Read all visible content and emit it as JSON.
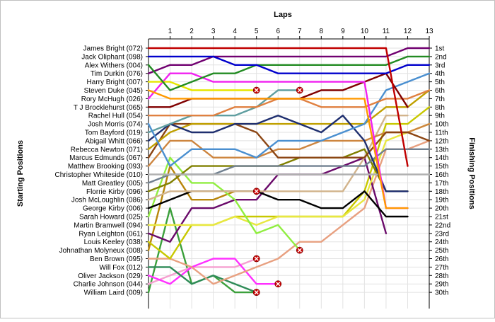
{
  "chart_data": {
    "type": "line",
    "title": "",
    "xlabel": "Laps",
    "ylabel_left": "Starting Positions",
    "ylabel_right": "Finishing Positions",
    "x": [
      0,
      1,
      2,
      3,
      4,
      5,
      6,
      7,
      8,
      9,
      10,
      11,
      12,
      13
    ],
    "lap_labels": [
      "1",
      "2",
      "3",
      "4",
      "5",
      "6",
      "7",
      "8",
      "9",
      "10",
      "11",
      "12",
      "13"
    ],
    "finishing_labels": [
      "1st",
      "2nd",
      "3rd",
      "4th",
      "5th",
      "6th",
      "7th",
      "8th",
      "9th",
      "10th",
      "11th",
      "12th",
      "13th",
      "14th",
      "15th",
      "16th",
      "17th",
      "18th",
      "19th",
      "20th",
      "21st",
      "22nd",
      "23rd",
      "24th",
      "25th",
      "26th",
      "27th",
      "28th",
      "29th",
      "30th"
    ],
    "ylim": [
      1,
      30
    ],
    "y_inverted": true,
    "grid": true,
    "retirement_marker": "red-x",
    "series": [
      {
        "name": "James Bright (072)",
        "color": "#c00000",
        "positions": [
          1,
          1,
          1,
          1,
          1,
          1,
          1,
          1,
          1,
          1,
          1,
          1,
          15
        ]
      },
      {
        "name": "Jack Oliphant (098)",
        "color": "#0000cc",
        "positions": [
          2,
          2,
          2,
          2,
          3,
          3,
          4,
          4,
          4,
          4,
          4,
          4,
          3,
          3
        ]
      },
      {
        "name": "Alex Withers (004)",
        "color": "#228b22",
        "positions": [
          3,
          6,
          5,
          4,
          4,
          3,
          3,
          3,
          3,
          3,
          3,
          3,
          2,
          2
        ]
      },
      {
        "name": "Tim Durkin (076)",
        "color": "#700070",
        "positions": [
          4,
          3,
          3,
          2,
          2,
          2,
          2,
          2,
          2,
          2,
          2,
          2,
          1,
          1
        ]
      },
      {
        "name": "Harry Bright (007)",
        "color": "#e6e600",
        "positions": [
          5,
          5,
          6,
          6,
          6,
          6
        ]
      },
      {
        "name": "Steven Duke (045)",
        "color": "#ff9900",
        "positions": [
          6,
          7,
          7,
          7,
          7,
          7,
          7,
          7,
          7,
          7,
          7,
          20,
          20
        ]
      },
      {
        "name": "Rory McHugh (026)",
        "color": "#f020f0",
        "positions": [
          7,
          4,
          4,
          5,
          5,
          5,
          5,
          5,
          5,
          5,
          5,
          20,
          20
        ]
      },
      {
        "name": "T J Brocklehurst (065)",
        "color": "#800000",
        "positions": [
          8,
          8,
          7,
          7,
          7,
          7,
          7,
          7,
          6,
          6,
          5,
          4,
          8
        ]
      },
      {
        "name": "Rachel Hull (054)",
        "color": "#e08040",
        "positions": [
          9,
          9,
          9,
          9,
          8,
          8,
          7,
          7,
          8,
          8,
          8,
          7,
          7,
          6
        ]
      },
      {
        "name": "Josh Morris (074)",
        "color": "#4a8fd0",
        "positions": [
          10,
          15,
          13,
          13,
          13,
          14,
          12,
          12,
          12,
          11,
          10,
          6,
          5,
          4
        ]
      },
      {
        "name": "Tom Bayford (019)",
        "color": "#5f9ea0",
        "positions": [
          11,
          10,
          9,
          9,
          9,
          8,
          6,
          6
        ]
      },
      {
        "name": "Abigail Whitt (066)",
        "color": "#1f2f6f",
        "positions": [
          12,
          10,
          11,
          11,
          10,
          10,
          9,
          10,
          11,
          9,
          12,
          18,
          18
        ]
      },
      {
        "name": "Rebecca Newton (071)",
        "color": "#c0a000",
        "positions": [
          13,
          11,
          10,
          10,
          10,
          10,
          10,
          10,
          10,
          10,
          10,
          8,
          8,
          6
        ]
      },
      {
        "name": "Marcus Edmunds (067)",
        "color": "#8b4513",
        "positions": [
          14,
          10,
          10,
          10,
          10,
          11,
          14,
          14,
          14,
          14,
          14,
          11,
          11,
          12
        ]
      },
      {
        "name": "Matthew Brooking (093)",
        "color": "#cd853f",
        "positions": [
          15,
          12,
          12,
          14,
          14,
          14,
          13,
          13,
          12,
          12,
          12,
          11,
          11,
          10
        ]
      },
      {
        "name": "Christopher Whiteside (010)",
        "color": "#b0b0b0",
        "positions": [
          16,
          16,
          16,
          16,
          16,
          16,
          16,
          16,
          16,
          16,
          16,
          16,
          16,
          16
        ]
      },
      {
        "name": "Matt Greatley (005)",
        "color": "#708090",
        "positions": [
          17,
          16,
          16,
          16,
          15,
          15,
          15,
          15,
          15,
          15,
          15,
          13,
          13,
          13
        ]
      },
      {
        "name": "Florrie Kirby (096)",
        "color": "#808000",
        "positions": [
          18,
          17,
          15,
          15,
          15,
          15,
          15,
          14,
          14,
          14,
          13,
          18,
          18
        ]
      },
      {
        "name": "Josh McLoughlin (086)",
        "color": "#d2b48c",
        "positions": [
          19,
          18,
          18,
          18,
          18,
          18,
          18,
          18,
          18,
          18,
          14,
          9,
          9
        ]
      },
      {
        "name": "George Kirby (006)",
        "color": "#000000",
        "positions": [
          20,
          19,
          18,
          18,
          18,
          18,
          19,
          19,
          20,
          20,
          18,
          21,
          21
        ]
      },
      {
        "name": "Sarah Howard (025)",
        "color": "#90ee40",
        "positions": [
          21,
          14,
          17,
          17,
          19,
          23,
          22,
          25
        ]
      },
      {
        "name": "Martin Bramwell (094)",
        "color": "#e8e840",
        "positions": [
          22,
          22,
          22,
          22,
          21,
          22,
          21,
          21,
          21,
          21,
          19,
          12,
          11,
          10
        ]
      },
      {
        "name": "Ryan Leighton (061)",
        "color": "#6a0a6a",
        "positions": [
          23,
          24,
          20,
          20,
          19,
          19,
          16,
          16,
          16,
          15,
          14,
          23
        ]
      },
      {
        "name": "Louis Keeley (038)",
        "color": "#c8c800",
        "positions": [
          24,
          26,
          22,
          22,
          21,
          21,
          21,
          21,
          21,
          21,
          18,
          10,
          10,
          8
        ]
      },
      {
        "name": "Johnathan Molyneux (008)",
        "color": "#b8860b",
        "positions": [
          25,
          15,
          19,
          19,
          18,
          18
        ]
      },
      {
        "name": "Ben Brown (095)",
        "color": "#e8a080",
        "positions": [
          26,
          26,
          27,
          29,
          28,
          27,
          26,
          24,
          24,
          22,
          20,
          13,
          13,
          12
        ]
      },
      {
        "name": "Will Fox (012)",
        "color": "#2e8b57",
        "positions": [
          27,
          27,
          29,
          28,
          29,
          30
        ]
      },
      {
        "name": "Oliver Jackson (029)",
        "color": "#ff30ff",
        "positions": [
          28,
          29,
          27,
          26,
          26,
          29,
          29
        ]
      },
      {
        "name": "Charlie Johnson (044)",
        "color": "#f5a0d0",
        "positions": [
          29,
          28,
          27,
          27,
          27,
          26
        ]
      },
      {
        "name": "William Laird (009)",
        "color": "#3ca03c",
        "positions": [
          30,
          20,
          29,
          28,
          30,
          30
        ]
      }
    ]
  }
}
